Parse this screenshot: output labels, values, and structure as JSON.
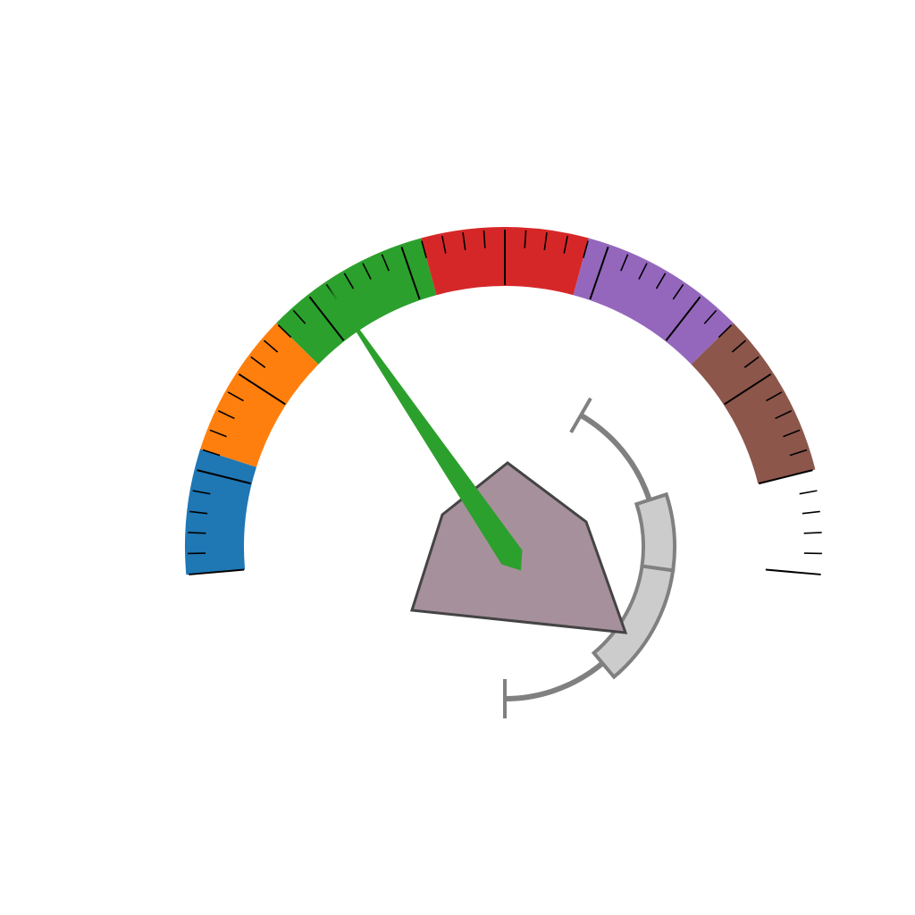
{
  "chart_data": {
    "type": "gauge",
    "title": "",
    "scale": {
      "min": 0,
      "max": 100,
      "major_tick_step": 10,
      "minor_ticks_per_major": 5,
      "start_angle_deg": 185,
      "end_angle_deg": -5
    },
    "bands": [
      {
        "from": 0,
        "to": 12,
        "color": "#1f77b4"
      },
      {
        "from": 12,
        "to": 26,
        "color": "#ff7f0e"
      },
      {
        "from": 26,
        "to": 42,
        "color": "#2ca02c"
      },
      {
        "from": 42,
        "to": 58,
        "color": "#d62728"
      },
      {
        "from": 58,
        "to": 74,
        "color": "#9467bd"
      },
      {
        "from": 74,
        "to": 90,
        "color": "#8c564b"
      }
    ],
    "needle": {
      "value": 32,
      "color": "#2ca02c"
    },
    "hub": {
      "shape": "pentagon",
      "color": "#a6909b",
      "edge_color": "#444444"
    },
    "secondary_arc": {
      "shown_range_deg": [
        60,
        -90
      ],
      "color": "#808080",
      "highlight_segments": [
        {
          "from_deg": 18,
          "to_deg": -8,
          "color": "#cccccc"
        },
        {
          "from_deg": -8,
          "to_deg": -50,
          "color": "#cccccc"
        }
      ]
    },
    "grid": false,
    "legend": "none"
  }
}
